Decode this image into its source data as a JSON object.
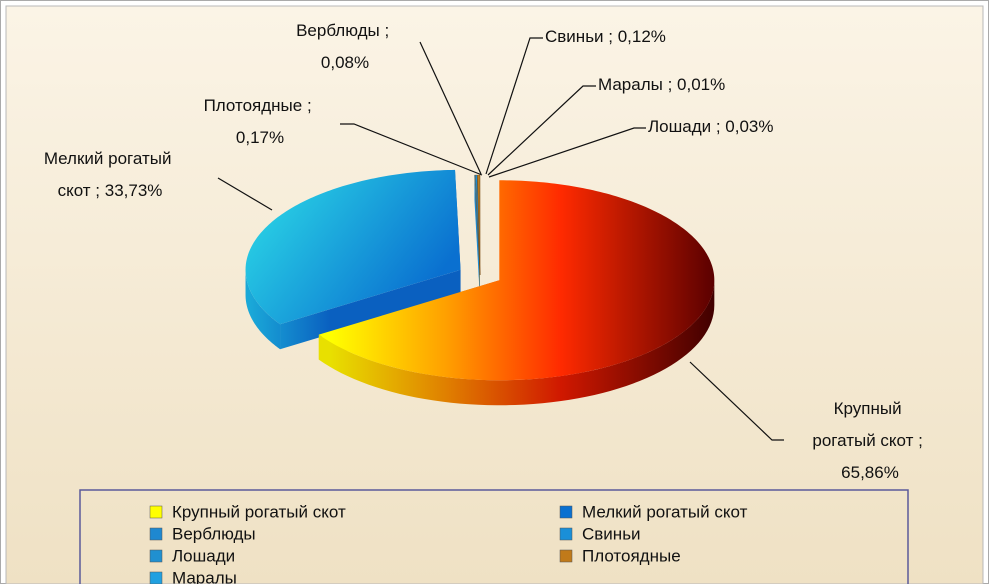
{
  "chart_data": {
    "type": "pie3d",
    "categories": [
      "Крупный рогатый скот",
      "Мелкий рогатый скот",
      "Верблюды",
      "Свиньи",
      "Лошади",
      "Плотоядные",
      "Маралы"
    ],
    "values": [
      65.86,
      33.73,
      0.08,
      0.12,
      0.03,
      0.17,
      0.01
    ],
    "value_labels": [
      "Крупный рогатый скот ; 65,86%",
      "Мелкий рогатый скот ; 33,73%",
      "Верблюды ; 0,08%",
      "Свиньи ; 0,12%",
      "Лошади ; 0,03%",
      "Плотоядные ; 0,17%",
      "Маралы ; 0,01%"
    ],
    "colors": [
      "#ff3000",
      "#1ab8e0",
      "#1e88d0",
      "#1a8fd8",
      "#2090d0",
      "#c07a1a",
      "#20a0e0"
    ],
    "legend": "bottom"
  }
}
